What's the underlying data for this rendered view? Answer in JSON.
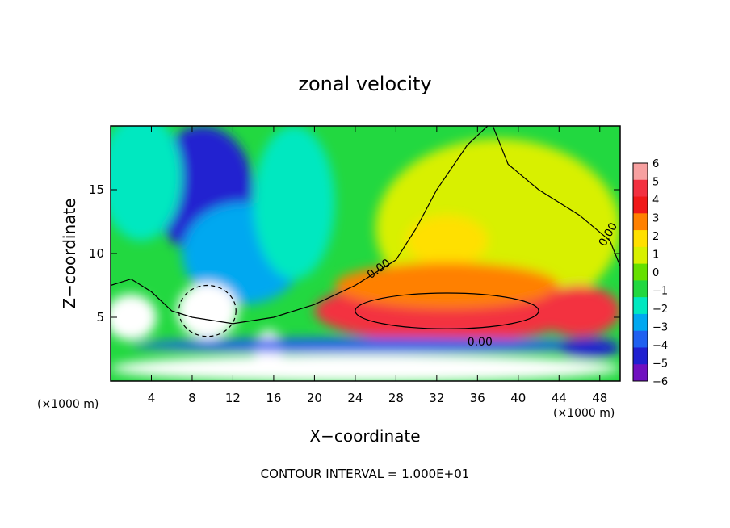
{
  "chart_data": {
    "type": "heatmap",
    "title": "zonal velocity",
    "xlabel": "X−coordinate",
    "ylabel": "Z−coordinate",
    "x_unit_left": "(×1000 m)",
    "x_unit_right": "(×1000 m)",
    "footer": "CONTOUR INTERVAL = 1.000E+01",
    "xlim": [
      0,
      50
    ],
    "ylim": [
      0,
      20
    ],
    "x_ticks": [
      4,
      8,
      12,
      16,
      20,
      24,
      28,
      32,
      36,
      40,
      44,
      48
    ],
    "y_ticks": [
      5,
      10,
      15
    ],
    "contour_labels": [
      "0.00",
      "0.00",
      "0.00"
    ],
    "colorbar": {
      "min": -6,
      "max": 6,
      "tick_labels": [
        "6",
        "5",
        "4",
        "3",
        "2",
        "1",
        "0",
        "−1",
        "−2",
        "−3",
        "−4",
        "−5",
        "−6"
      ],
      "colors": [
        "#f7a0a0",
        "#f33040",
        "#f01818",
        "#ff8000",
        "#ffe000",
        "#d8f000",
        "#66e000",
        "#22d840",
        "#00e8c0",
        "#00a8f0",
        "#2060f0",
        "#2020d0",
        "#7010c0"
      ]
    },
    "blobs": [
      {
        "cx": 9,
        "cy": 15,
        "rx": 5,
        "ry": 5,
        "v": -5
      },
      {
        "cx": 9.5,
        "cy": 10.5,
        "rx": 1.5,
        "ry": 1.5,
        "v": -6
      },
      {
        "cx": 13,
        "cy": 10,
        "rx": 6,
        "ry": 4,
        "v": -3
      },
      {
        "cx": 3,
        "cy": 16,
        "rx": 4,
        "ry": 5,
        "v": -2
      },
      {
        "cx": 18,
        "cy": 14,
        "rx": 4,
        "ry": 6,
        "v": -2
      },
      {
        "cx": 38,
        "cy": 12,
        "rx": 12,
        "ry": 7,
        "v": 1
      },
      {
        "cx": 33,
        "cy": 11,
        "rx": 4,
        "ry": 2,
        "v": 2
      },
      {
        "cx": 33,
        "cy": 5.5,
        "rx": 13,
        "ry": 2.5,
        "v": 5.5
      },
      {
        "cx": 33,
        "cy": 7.5,
        "rx": 11,
        "ry": 1.8,
        "v": 3
      },
      {
        "cx": 46,
        "cy": 5.5,
        "rx": 4,
        "ry": 2,
        "v": 5.5
      },
      {
        "cx": 9.5,
        "cy": 5.5,
        "rx": 3,
        "ry": 2.2,
        "v": 6
      },
      {
        "cx": 2,
        "cy": 5,
        "rx": 2.5,
        "ry": 1.8,
        "v": 6
      },
      {
        "cx": 15.5,
        "cy": 2.5,
        "rx": 1.4,
        "ry": 1.5,
        "v": 6
      },
      {
        "cx": 26,
        "cy": 2.8,
        "rx": 24,
        "ry": 0.6,
        "v": -4
      },
      {
        "cx": 47,
        "cy": 2.6,
        "rx": 3,
        "ry": 0.8,
        "v": -5
      },
      {
        "cx": 25,
        "cy": 1,
        "rx": 25,
        "ry": 1.1,
        "v": 6
      }
    ],
    "background_value": -0.5
  }
}
